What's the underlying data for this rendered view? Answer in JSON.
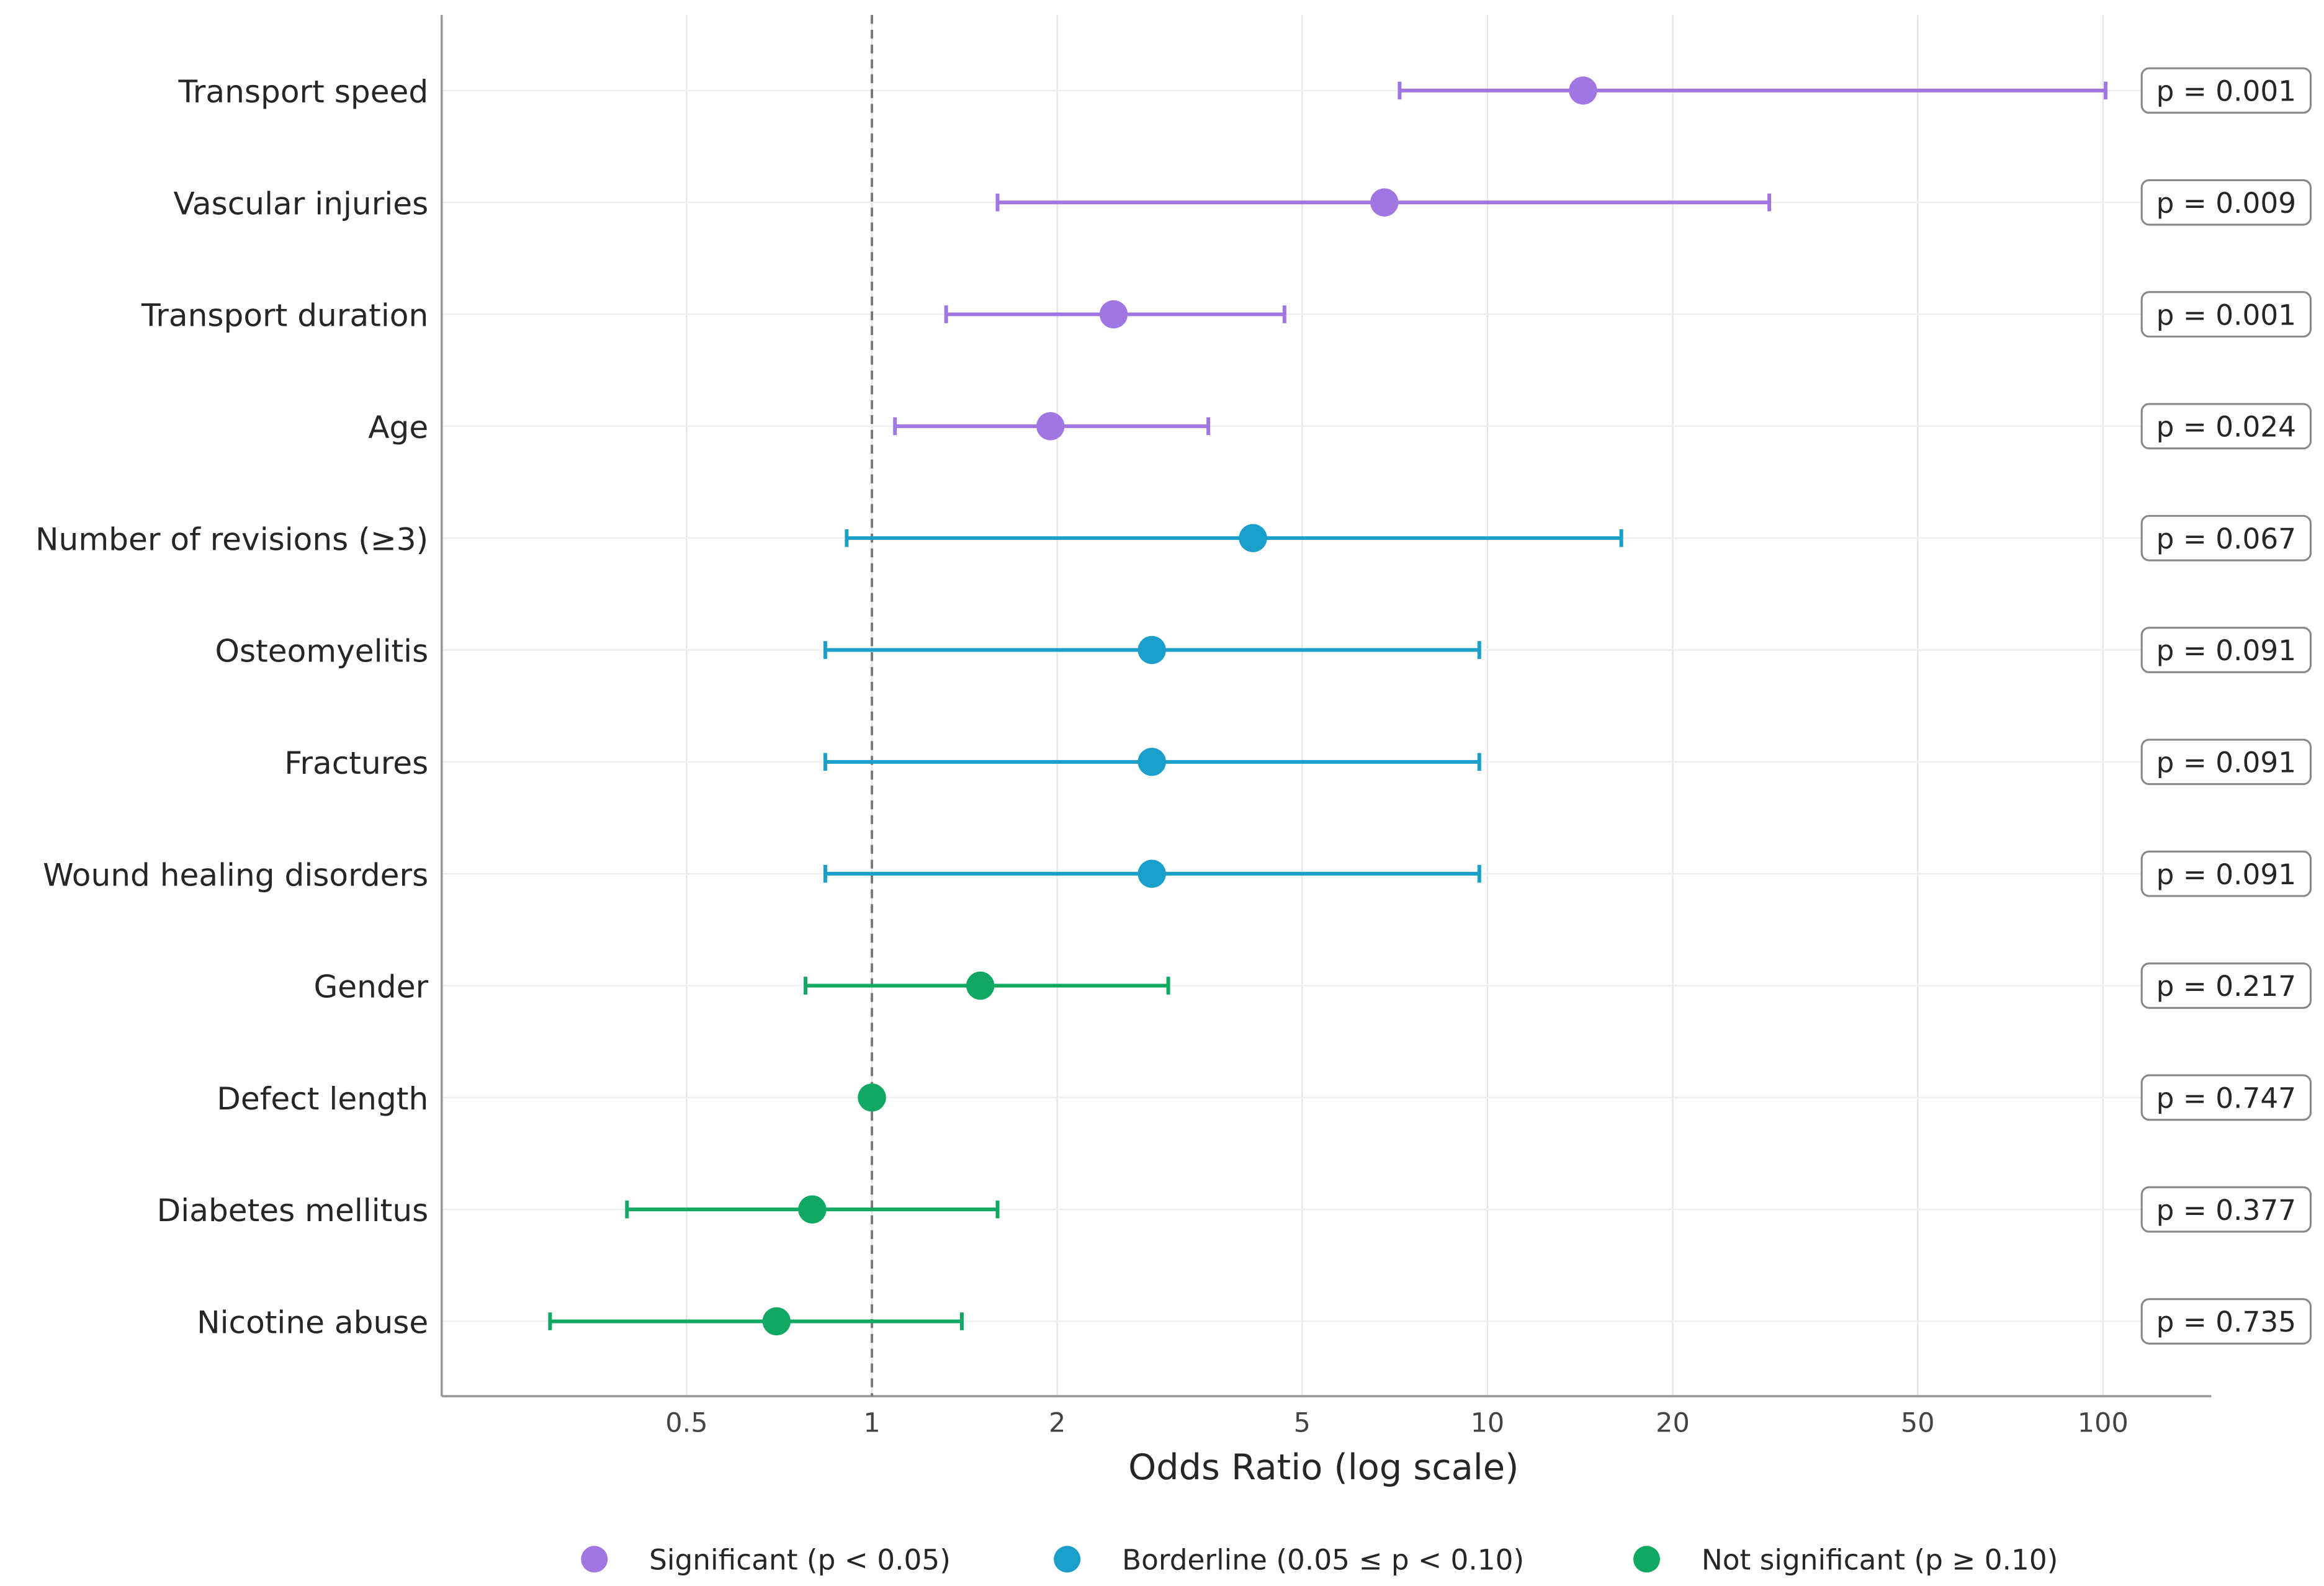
{
  "chart_data": {
    "type": "forest",
    "xlabel": "Odds Ratio (log scale)",
    "xscale": "log",
    "xlim": [
      0.2,
      150
    ],
    "xticks": [
      0.5,
      1,
      2,
      5,
      10,
      20,
      50,
      100
    ],
    "xtick_labels": [
      "0.5",
      "1",
      "2",
      "5",
      "10",
      "20",
      "50",
      "100"
    ],
    "reference_line": 1,
    "grid": true,
    "legend_position": "bottom-center",
    "groups": {
      "significant": {
        "label": "Significant (p < 0.05)",
        "color": "#a176e3"
      },
      "borderline": {
        "label": "Borderline (0.05 ≤ p < 0.10)",
        "color": "#1a9fca"
      },
      "not_significant": {
        "label": "Not significant (p ≥ 0.10)",
        "color": "#10a862"
      }
    },
    "rows": [
      {
        "label": "Transport speed",
        "or": 14.3,
        "lo": 7.2,
        "hi": 101,
        "p": "p = 0.001",
        "group": "significant"
      },
      {
        "label": "Vascular injuries",
        "or": 6.8,
        "lo": 1.6,
        "hi": 28.7,
        "p": "p = 0.009",
        "group": "significant"
      },
      {
        "label": "Transport duration",
        "or": 2.47,
        "lo": 1.32,
        "hi": 4.68,
        "p": "p = 0.001",
        "group": "significant"
      },
      {
        "label": "Age",
        "or": 1.95,
        "lo": 1.09,
        "hi": 3.52,
        "p": "p = 0.024",
        "group": "significant"
      },
      {
        "label": "Number of revisions (≥3)",
        "or": 4.16,
        "lo": 0.91,
        "hi": 16.5,
        "p": "p = 0.067",
        "group": "borderline"
      },
      {
        "label": "Osteomyelitis",
        "or": 2.85,
        "lo": 0.84,
        "hi": 9.7,
        "p": "p = 0.091",
        "group": "borderline"
      },
      {
        "label": "Fractures",
        "or": 2.85,
        "lo": 0.84,
        "hi": 9.7,
        "p": "p = 0.091",
        "group": "borderline"
      },
      {
        "label": "Wound healing disorders",
        "or": 2.85,
        "lo": 0.84,
        "hi": 9.7,
        "p": "p = 0.091",
        "group": "borderline"
      },
      {
        "label": "Gender",
        "or": 1.5,
        "lo": 0.78,
        "hi": 3.03,
        "p": "p = 0.217",
        "group": "not_significant"
      },
      {
        "label": "Defect length",
        "or": 1.0,
        "lo": 0.995,
        "hi": 1.005,
        "p": "p = 0.747",
        "group": "not_significant"
      },
      {
        "label": "Diabetes mellitus",
        "or": 0.8,
        "lo": 0.4,
        "hi": 1.6,
        "p": "p = 0.377",
        "group": "not_significant"
      },
      {
        "label": "Nicotine abuse",
        "or": 0.7,
        "lo": 0.3,
        "hi": 1.4,
        "p": "p = 0.735",
        "group": "not_significant"
      }
    ]
  }
}
